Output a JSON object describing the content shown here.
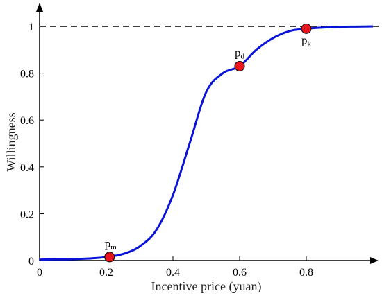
{
  "chart_data": {
    "type": "line",
    "title": "",
    "xlabel": "Incentive price (yuan)",
    "ylabel": "Willingness",
    "xlim": [
      0,
      1.0
    ],
    "ylim": [
      0,
      1.0
    ],
    "x_ticks": [
      "0",
      "0.2",
      "0.4",
      "0.6",
      "0.8"
    ],
    "y_ticks": [
      "0",
      "0.2",
      "0.4",
      "0.6",
      "0.8",
      "1"
    ],
    "grid": false,
    "series": [
      {
        "color": "#0a14d8",
        "x": [
          0.0,
          0.05,
          0.1,
          0.15,
          0.2,
          0.25,
          0.3,
          0.35,
          0.4,
          0.45,
          0.5,
          0.55,
          0.6,
          0.65,
          0.7,
          0.75,
          0.8,
          0.85,
          0.9,
          0.95,
          1.0
        ],
        "y": [
          0.004,
          0.005,
          0.006,
          0.009,
          0.015,
          0.028,
          0.06,
          0.13,
          0.28,
          0.5,
          0.72,
          0.8,
          0.83,
          0.9,
          0.95,
          0.98,
          0.99,
          0.995,
          0.998,
          0.999,
          1.0
        ]
      }
    ],
    "reference_line": {
      "y": 1,
      "style": "dashed",
      "color": "#000000"
    },
    "points": [
      {
        "label": "p",
        "sub": "m",
        "x": 0.21,
        "y": 0.015,
        "color": "#e8141e"
      },
      {
        "label": "p",
        "sub": "d",
        "x": 0.6,
        "y": 0.83,
        "color": "#e8141e"
      },
      {
        "label": "p",
        "sub": "k",
        "x": 0.8,
        "y": 0.99,
        "color": "#e8141e"
      }
    ]
  }
}
